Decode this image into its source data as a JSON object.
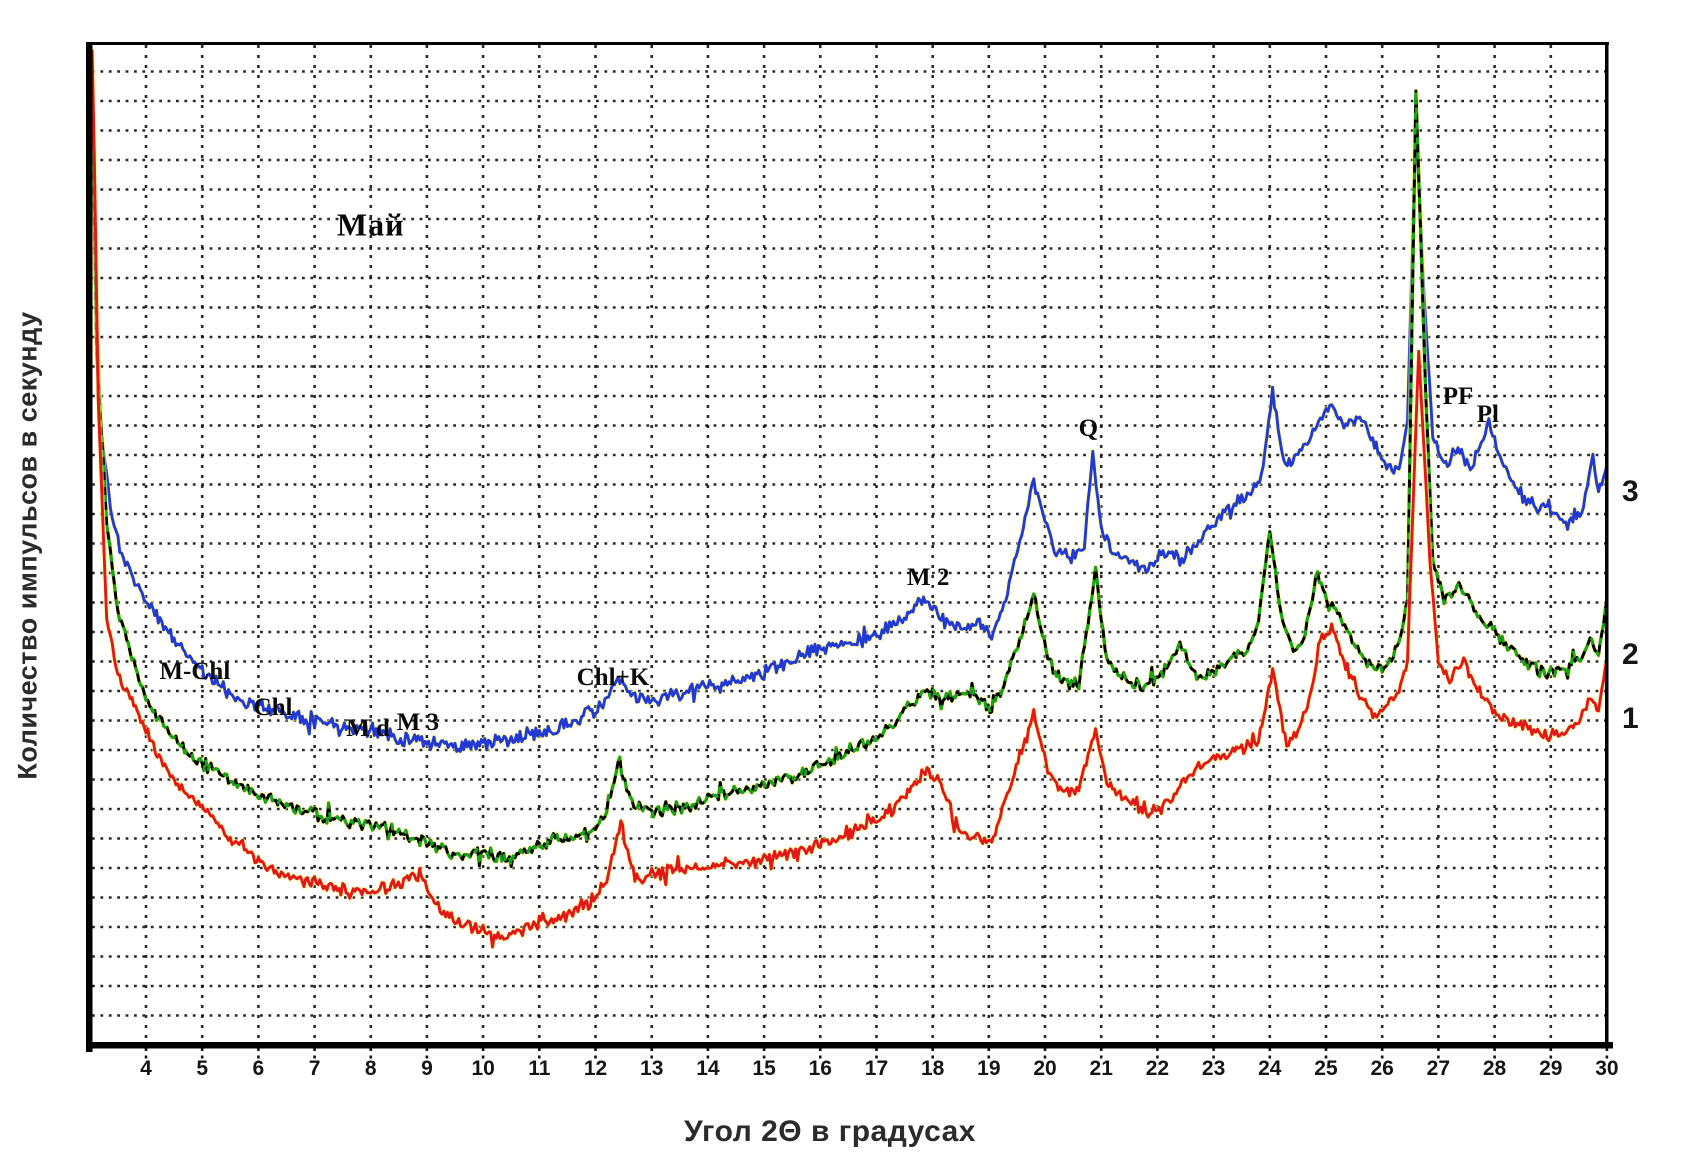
{
  "axes": {
    "x_label": "Угол 2Θ в градусах",
    "y_label": "Количество импульсов в секунду",
    "x_ticks": [
      4,
      5,
      6,
      7,
      8,
      9,
      10,
      11,
      12,
      13,
      14,
      15,
      16,
      17,
      18,
      19,
      20,
      21,
      22,
      23,
      24,
      25,
      26,
      27,
      28,
      29,
      30
    ],
    "x_range": [
      3.04,
      30
    ],
    "y_range": [
      0,
      100
    ],
    "grid": "dotted"
  },
  "colors": {
    "curve1_red": "#e21717",
    "curve2_green": "#17a517",
    "curve2_overlay_black": "#000000",
    "curve3_blue": "#2239d4",
    "halo_yellow": "#ffff80",
    "grid": "#141414",
    "frame": "#000000"
  },
  "chart_data": {
    "type": "line",
    "title": "Май",
    "xlabel": "Угол 2Θ в градусах",
    "ylabel": "Количество импульсов в секунду",
    "x_unit": "degrees 2-theta",
    "y_unit": "counts per second (relative scale 0-100, y axis unlabeled)",
    "xlim": [
      3.04,
      30
    ],
    "ylim": [
      0,
      100
    ],
    "legend_position": "right-edge-numbers",
    "annotations": [
      {
        "text": "Май",
        "x": 8.0,
        "y": 82.0,
        "cls": "big"
      },
      {
        "text": "M-Chl",
        "x": 4.87,
        "y": 37.3,
        "cls": ""
      },
      {
        "text": "Chl",
        "x": 6.26,
        "y": 33.7,
        "cls": ""
      },
      {
        "text": "M d",
        "x": 7.95,
        "y": 31.6,
        "cls": ""
      },
      {
        "text": "M 3",
        "x": 8.84,
        "y": 32.2,
        "cls": ""
      },
      {
        "text": "Chl+K",
        "x": 12.31,
        "y": 36.7,
        "cls": ""
      },
      {
        "text": "M 2",
        "x": 17.92,
        "y": 46.7,
        "cls": ""
      },
      {
        "text": "Q",
        "x": 20.77,
        "y": 61.6,
        "cls": ""
      },
      {
        "text": "PF",
        "x": 27.35,
        "y": 64.8,
        "cls": ""
      },
      {
        "text": "Pl",
        "x": 27.88,
        "y": 63.0,
        "cls": ""
      }
    ],
    "series_labels": [
      {
        "text": "3",
        "y": 55.3
      },
      {
        "text": "2",
        "y": 39.0
      },
      {
        "text": "1",
        "y": 32.6
      }
    ],
    "series": [
      {
        "name": "3",
        "color": "#2239d4",
        "style": "solid",
        "seed": 11,
        "noise": 0.85,
        "points": [
          [
            3.04,
            95
          ],
          [
            3.1,
            76
          ],
          [
            3.2,
            61.5
          ],
          [
            3.4,
            52.5
          ],
          [
            3.6,
            48.5
          ],
          [
            4,
            44.5
          ],
          [
            4.5,
            40.5
          ],
          [
            5,
            37.5
          ],
          [
            5.5,
            35
          ],
          [
            6,
            34
          ],
          [
            6.5,
            33.2
          ],
          [
            7,
            32.5
          ],
          [
            7.5,
            31.9
          ],
          [
            8,
            31.5
          ],
          [
            8.5,
            30.8
          ],
          [
            9,
            30.3
          ],
          [
            9.5,
            29.9
          ],
          [
            10,
            30.1
          ],
          [
            10.5,
            30.5
          ],
          [
            11,
            31.3
          ],
          [
            11.5,
            32.1
          ],
          [
            12,
            33.5
          ],
          [
            12.2,
            34.5
          ],
          [
            12.4,
            36.7
          ],
          [
            12.6,
            35
          ],
          [
            13,
            34.5
          ],
          [
            13.5,
            35.1
          ],
          [
            14,
            35.8
          ],
          [
            14.5,
            36.4
          ],
          [
            15,
            37.3
          ],
          [
            15.5,
            38.5
          ],
          [
            16,
            39.7
          ],
          [
            16.5,
            40.2
          ],
          [
            17,
            41
          ],
          [
            17.4,
            42.3
          ],
          [
            17.9,
            44.7
          ],
          [
            18.15,
            42.3
          ],
          [
            18.5,
            41.7
          ],
          [
            18.8,
            42.3
          ],
          [
            19.05,
            41
          ],
          [
            19.3,
            44.5
          ],
          [
            19.55,
            50.5
          ],
          [
            19.8,
            56.2
          ],
          [
            20,
            52.5
          ],
          [
            20.2,
            49.3
          ],
          [
            20.5,
            48.5
          ],
          [
            20.7,
            50
          ],
          [
            20.85,
            59.3
          ],
          [
            21,
            51.5
          ],
          [
            21.2,
            49.3
          ],
          [
            21.5,
            48.7
          ],
          [
            21.8,
            47.3
          ],
          [
            22.1,
            49.3
          ],
          [
            22.4,
            48.5
          ],
          [
            22.7,
            50
          ],
          [
            23,
            52
          ],
          [
            23.3,
            54
          ],
          [
            23.6,
            55
          ],
          [
            23.85,
            56.5
          ],
          [
            24.05,
            65.3
          ],
          [
            24.25,
            58
          ],
          [
            24.5,
            59
          ],
          [
            24.7,
            60.3
          ],
          [
            24.9,
            62.7
          ],
          [
            25.1,
            63.7
          ],
          [
            25.35,
            62
          ],
          [
            25.6,
            63
          ],
          [
            25.8,
            60.7
          ],
          [
            26.05,
            58
          ],
          [
            26.3,
            57.7
          ],
          [
            26.45,
            62.5
          ],
          [
            26.6,
            91.7
          ],
          [
            26.75,
            74.5
          ],
          [
            26.9,
            61
          ],
          [
            27.1,
            58
          ],
          [
            27.35,
            59.5
          ],
          [
            27.6,
            57.5
          ],
          [
            27.9,
            62
          ],
          [
            28.1,
            59
          ],
          [
            28.4,
            55.5
          ],
          [
            28.7,
            54
          ],
          [
            29,
            53.5
          ],
          [
            29.3,
            52
          ],
          [
            29.55,
            53
          ],
          [
            29.75,
            59
          ],
          [
            29.85,
            55
          ],
          [
            30,
            58
          ]
        ]
      },
      {
        "name": "2",
        "color": "#17a517",
        "style": "green-black-dashed",
        "seed": 22,
        "noise": 0.8,
        "points": [
          [
            3.04,
            97
          ],
          [
            3.12,
            69.5
          ],
          [
            3.3,
            52.5
          ],
          [
            3.5,
            43.5
          ],
          [
            4,
            34.5
          ],
          [
            4.5,
            30.5
          ],
          [
            5,
            28.2
          ],
          [
            5.5,
            26.5
          ],
          [
            6,
            25
          ],
          [
            6.5,
            23.9
          ],
          [
            7,
            23
          ],
          [
            7.5,
            22.5
          ],
          [
            8,
            22
          ],
          [
            8.5,
            21.2
          ],
          [
            9,
            20.2
          ],
          [
            9.3,
            19.5
          ],
          [
            9.6,
            18.7
          ],
          [
            10,
            19.3
          ],
          [
            10.3,
            18.7
          ],
          [
            10.7,
            19.3
          ],
          [
            11,
            19.9
          ],
          [
            11.5,
            20.5
          ],
          [
            12,
            21.7
          ],
          [
            12.2,
            23.3
          ],
          [
            12.4,
            28.3
          ],
          [
            12.65,
            24
          ],
          [
            13,
            23.3
          ],
          [
            13.5,
            23.9
          ],
          [
            14,
            24.7
          ],
          [
            14.5,
            25.3
          ],
          [
            15,
            25.9
          ],
          [
            15.5,
            26.8
          ],
          [
            16,
            28
          ],
          [
            16.5,
            29.3
          ],
          [
            17,
            30.8
          ],
          [
            17.4,
            32.7
          ],
          [
            17.9,
            35.7
          ],
          [
            18.15,
            34.5
          ],
          [
            18.5,
            35.3
          ],
          [
            18.8,
            34.5
          ],
          [
            19.05,
            33.5
          ],
          [
            19.3,
            36.5
          ],
          [
            19.55,
            40.5
          ],
          [
            19.8,
            45.1
          ],
          [
            20.05,
            38.5
          ],
          [
            20.3,
            36.5
          ],
          [
            20.6,
            36
          ],
          [
            20.9,
            47.5
          ],
          [
            21.1,
            38
          ],
          [
            21.4,
            36.7
          ],
          [
            21.7,
            35.7
          ],
          [
            22,
            36.5
          ],
          [
            22.4,
            40
          ],
          [
            22.7,
            36.7
          ],
          [
            23,
            37.5
          ],
          [
            23.3,
            38.5
          ],
          [
            23.6,
            39.5
          ],
          [
            23.8,
            42.5
          ],
          [
            24,
            51.5
          ],
          [
            24.2,
            43
          ],
          [
            24.45,
            39
          ],
          [
            24.6,
            40.5
          ],
          [
            24.85,
            47.3
          ],
          [
            25.05,
            44.1
          ],
          [
            25.3,
            42.5
          ],
          [
            25.6,
            39
          ],
          [
            25.9,
            37.3
          ],
          [
            26.1,
            38.5
          ],
          [
            26.3,
            40
          ],
          [
            26.45,
            44.5
          ],
          [
            26.6,
            95.5
          ],
          [
            26.78,
            64.5
          ],
          [
            26.9,
            48.5
          ],
          [
            27.1,
            44.5
          ],
          [
            27.4,
            45.8
          ],
          [
            27.7,
            43
          ],
          [
            28,
            41.2
          ],
          [
            28.3,
            39.5
          ],
          [
            28.6,
            38.2
          ],
          [
            28.9,
            37.2
          ],
          [
            29.2,
            37.7
          ],
          [
            29.5,
            38.5
          ],
          [
            29.7,
            40.5
          ],
          [
            29.85,
            39
          ],
          [
            30,
            44.5
          ]
        ]
      },
      {
        "name": "1",
        "color": "#e21717",
        "style": "solid",
        "seed": 33,
        "noise": 0.8,
        "points": [
          [
            3.04,
            99.5
          ],
          [
            3.08,
            89
          ],
          [
            3.15,
            64.5
          ],
          [
            3.3,
            42.5
          ],
          [
            3.5,
            37
          ],
          [
            4,
            31.5
          ],
          [
            4.3,
            28.2
          ],
          [
            4.7,
            25.2
          ],
          [
            5,
            24
          ],
          [
            5.5,
            20.7
          ],
          [
            6,
            18.2
          ],
          [
            6.5,
            17
          ],
          [
            7,
            16.1
          ],
          [
            7.5,
            15.5
          ],
          [
            8,
            15.3
          ],
          [
            8.4,
            15.9
          ],
          [
            8.9,
            17.3
          ],
          [
            9.1,
            14.5
          ],
          [
            9.4,
            12.9
          ],
          [
            9.7,
            12
          ],
          [
            10,
            11.3
          ],
          [
            10.3,
            10.8
          ],
          [
            10.6,
            11.3
          ],
          [
            11,
            12
          ],
          [
            11.5,
            13.1
          ],
          [
            12,
            14.7
          ],
          [
            12.2,
            16.5
          ],
          [
            12.45,
            22.2
          ],
          [
            12.7,
            16.5
          ],
          [
            13,
            17
          ],
          [
            13.5,
            17.5
          ],
          [
            14,
            17.9
          ],
          [
            14.5,
            18.2
          ],
          [
            15,
            18.6
          ],
          [
            15.5,
            19.2
          ],
          [
            16,
            20.1
          ],
          [
            16.5,
            21.1
          ],
          [
            17,
            22.4
          ],
          [
            17.4,
            24.4
          ],
          [
            17.9,
            27.6
          ],
          [
            18.15,
            25.9
          ],
          [
            18.45,
            21.6
          ],
          [
            18.7,
            20.6
          ],
          [
            19.05,
            20.6
          ],
          [
            19.3,
            24.4
          ],
          [
            19.55,
            28.9
          ],
          [
            19.8,
            33.2
          ],
          [
            20.05,
            27.4
          ],
          [
            20.3,
            25.4
          ],
          [
            20.6,
            25.6
          ],
          [
            20.9,
            31.6
          ],
          [
            21.1,
            26.4
          ],
          [
            21.4,
            24.9
          ],
          [
            21.7,
            23.6
          ],
          [
            22,
            23.4
          ],
          [
            22.3,
            24.9
          ],
          [
            22.6,
            27.2
          ],
          [
            23,
            28.6
          ],
          [
            23.5,
            29.6
          ],
          [
            23.8,
            30.4
          ],
          [
            24.05,
            37.6
          ],
          [
            24.3,
            30.2
          ],
          [
            24.5,
            31.4
          ],
          [
            24.7,
            34.4
          ],
          [
            24.9,
            40.6
          ],
          [
            25.1,
            41.9
          ],
          [
            25.35,
            37.6
          ],
          [
            25.6,
            34.9
          ],
          [
            25.9,
            32.9
          ],
          [
            26.1,
            33.9
          ],
          [
            26.3,
            35.4
          ],
          [
            26.45,
            38.4
          ],
          [
            26.65,
            69.5
          ],
          [
            26.85,
            48.4
          ],
          [
            27,
            38.4
          ],
          [
            27.2,
            36.4
          ],
          [
            27.45,
            38.4
          ],
          [
            27.7,
            35.4
          ],
          [
            28,
            33.4
          ],
          [
            28.3,
            32.4
          ],
          [
            28.6,
            31.6
          ],
          [
            28.9,
            30.9
          ],
          [
            29.2,
            31.4
          ],
          [
            29.5,
            32.4
          ],
          [
            29.7,
            34.9
          ],
          [
            29.85,
            33.5
          ],
          [
            30,
            38.5
          ]
        ]
      }
    ]
  }
}
